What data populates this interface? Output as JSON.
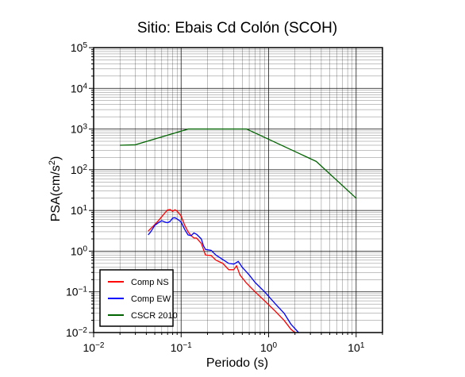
{
  "chart_data": {
    "type": "line",
    "title": "Sitio: Ebais Cd Colón (SCOH)",
    "xlabel": "Periodo (s)",
    "ylabel_main": "PSA(cm/s",
    "ylabel_sup": "2",
    "ylabel_tail": ")",
    "x_scale": "log",
    "y_scale": "log",
    "xlim": [
      0.01,
      20
    ],
    "ylim": [
      0.01,
      100000
    ],
    "grid": true,
    "legend_position": "bottom-left",
    "x_ticks": [
      {
        "value": 0.01,
        "base": "10",
        "exp": "−2"
      },
      {
        "value": 0.1,
        "base": "10",
        "exp": "−1"
      },
      {
        "value": 1,
        "base": "10",
        "exp": "0"
      },
      {
        "value": 10,
        "base": "10",
        "exp": "1"
      }
    ],
    "y_ticks": [
      {
        "value": 0.01,
        "base": "10",
        "exp": "−2"
      },
      {
        "value": 0.1,
        "base": "10",
        "exp": "−1"
      },
      {
        "value": 1,
        "base": "10",
        "exp": "0"
      },
      {
        "value": 10,
        "base": "10",
        "exp": "1"
      },
      {
        "value": 100,
        "base": "10",
        "exp": "2"
      },
      {
        "value": 1000,
        "base": "10",
        "exp": "3"
      },
      {
        "value": 10000,
        "base": "10",
        "exp": "4"
      },
      {
        "value": 100000,
        "base": "10",
        "exp": "5"
      }
    ],
    "series": [
      {
        "name": "Comp NS",
        "color": "#ff0000",
        "points": [
          [
            0.042,
            3.1
          ],
          [
            0.045,
            3.6
          ],
          [
            0.05,
            4.5
          ],
          [
            0.055,
            5.6
          ],
          [
            0.06,
            7.0
          ],
          [
            0.065,
            8.6
          ],
          [
            0.07,
            10.3
          ],
          [
            0.075,
            10.5
          ],
          [
            0.08,
            9.5
          ],
          [
            0.085,
            10.4
          ],
          [
            0.09,
            9.6
          ],
          [
            0.1,
            7.3
          ],
          [
            0.11,
            4.3
          ],
          [
            0.12,
            3.0
          ],
          [
            0.13,
            2.4
          ],
          [
            0.14,
            2.1
          ],
          [
            0.15,
            2.1
          ],
          [
            0.17,
            1.55
          ],
          [
            0.18,
            1.1
          ],
          [
            0.19,
            0.8
          ],
          [
            0.22,
            0.78
          ],
          [
            0.25,
            0.6
          ],
          [
            0.3,
            0.5
          ],
          [
            0.35,
            0.35
          ],
          [
            0.4,
            0.35
          ],
          [
            0.43,
            0.44
          ],
          [
            0.47,
            0.26
          ],
          [
            0.55,
            0.17
          ],
          [
            0.7,
            0.1
          ],
          [
            0.9,
            0.06
          ],
          [
            1.2,
            0.033
          ],
          [
            1.5,
            0.02
          ],
          [
            1.8,
            0.012
          ],
          [
            2.0,
            0.01
          ]
        ]
      },
      {
        "name": "Comp EW",
        "color": "#0000ff",
        "points": [
          [
            0.042,
            2.5
          ],
          [
            0.045,
            3.0
          ],
          [
            0.05,
            4.3
          ],
          [
            0.055,
            5.0
          ],
          [
            0.06,
            5.6
          ],
          [
            0.065,
            5.2
          ],
          [
            0.07,
            5.0
          ],
          [
            0.075,
            5.4
          ],
          [
            0.08,
            6.5
          ],
          [
            0.085,
            6.6
          ],
          [
            0.09,
            6.2
          ],
          [
            0.1,
            5.2
          ],
          [
            0.11,
            3.4
          ],
          [
            0.12,
            2.5
          ],
          [
            0.13,
            2.4
          ],
          [
            0.14,
            2.8
          ],
          [
            0.15,
            2.6
          ],
          [
            0.17,
            2.0
          ],
          [
            0.18,
            1.35
          ],
          [
            0.19,
            1.1
          ],
          [
            0.22,
            1.05
          ],
          [
            0.25,
            0.8
          ],
          [
            0.3,
            0.62
          ],
          [
            0.35,
            0.5
          ],
          [
            0.4,
            0.48
          ],
          [
            0.45,
            0.56
          ],
          [
            0.5,
            0.4
          ],
          [
            0.6,
            0.26
          ],
          [
            0.7,
            0.17
          ],
          [
            0.9,
            0.1
          ],
          [
            1.2,
            0.05
          ],
          [
            1.5,
            0.03
          ],
          [
            1.8,
            0.016
          ],
          [
            2.2,
            0.01
          ]
        ]
      },
      {
        "name": "CSCR 2010",
        "color": "#006400",
        "points": [
          [
            0.02,
            400
          ],
          [
            0.03,
            410
          ],
          [
            0.12,
            1000
          ],
          [
            0.56,
            1000
          ],
          [
            3.5,
            160
          ],
          [
            10,
            20
          ]
        ]
      }
    ]
  }
}
